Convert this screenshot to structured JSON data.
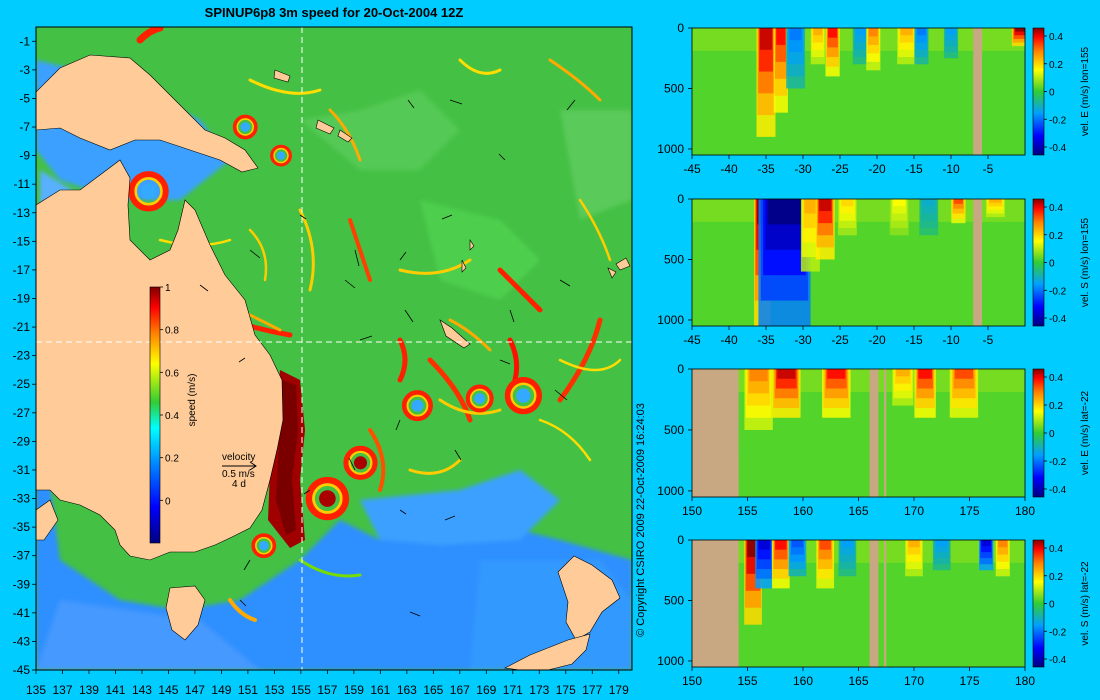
{
  "page": {
    "title": "SPINUP6p8 3m speed for 20-Oct-2004 12Z",
    "copyright": "© Copyright CSIRO 2009   22-Oct-2009 16:24:03"
  },
  "colors": {
    "background": "#00ccff",
    "land": "#ffcc99",
    "section_land": "#c8a882"
  },
  "chart_data": [
    {
      "type": "heatmap",
      "id": "map",
      "title": "SPINUP6p8 3m speed for 20-Oct-2004 12Z",
      "xticks": [
        135,
        137,
        139,
        141,
        143,
        145,
        147,
        149,
        151,
        153,
        155,
        157,
        159,
        161,
        163,
        165,
        167,
        169,
        171,
        173,
        175,
        177,
        179
      ],
      "yticks": [
        -1,
        -3,
        -5,
        -7,
        -9,
        -11,
        -13,
        -15,
        -17,
        -19,
        -21,
        -23,
        -25,
        -27,
        -29,
        -31,
        -33,
        -35,
        -37,
        -39,
        -41,
        -43,
        -45
      ],
      "xlim": [
        135,
        180
      ],
      "ylim": [
        -45,
        0
      ],
      "section_lines": {
        "lon": 155,
        "lat": -22
      },
      "colorbar": {
        "label": "speed (m/s)",
        "ticks": [
          0,
          0.2,
          0.4,
          0.6,
          0.8,
          1
        ],
        "range": [
          -0.2,
          1
        ]
      },
      "legend": {
        "label": "velocity",
        "scale": "0.5 m/s",
        "duration": "4 d"
      },
      "eddies": [
        {
          "lon": 143.5,
          "lat": -11.5,
          "r": 1.3
        },
        {
          "lon": 150.8,
          "lat": -7.0,
          "r": 0.8
        },
        {
          "lon": 153.5,
          "lat": -9.0,
          "r": 0.7
        },
        {
          "lon": 152.2,
          "lat": -36.3,
          "r": 0.8
        },
        {
          "lon": 157.0,
          "lat": -33.0,
          "r": 1.4
        },
        {
          "lon": 159.5,
          "lat": -30.5,
          "r": 1.1
        },
        {
          "lon": 171.8,
          "lat": -25.8,
          "r": 1.2
        },
        {
          "lon": 163.8,
          "lat": -26.5,
          "r": 1.0
        },
        {
          "lon": 168.5,
          "lat": -26.0,
          "r": 0.9
        }
      ]
    },
    {
      "type": "heatmap",
      "id": "s1",
      "ylabel": "vel. E (m/s) lon=155",
      "xticks": [
        -45,
        -40,
        -35,
        -30,
        -25,
        -20,
        -15,
        -10,
        -5
      ],
      "xlim": [
        -45,
        0
      ],
      "yticks": [
        0,
        500,
        1000
      ],
      "ylim": [
        0,
        1050
      ],
      "colorbar_ticks": [
        -0.4,
        -0.2,
        0,
        0.2,
        0.4
      ],
      "land_x": [
        [
          -7,
          -5.8
        ],
        [
          -6.8,
          -6.5
        ]
      ],
      "features": [
        {
          "x": -35,
          "v": 0.5,
          "w": 0.8,
          "depth": 900
        },
        {
          "x": -33,
          "v": 0.45,
          "w": 0.6,
          "depth": 700
        },
        {
          "x": -31,
          "v": -0.25,
          "w": 0.8,
          "depth": 500
        },
        {
          "x": -28,
          "v": 0.3,
          "w": 0.6,
          "depth": 300
        },
        {
          "x": -26,
          "v": 0.45,
          "w": 0.6,
          "depth": 400
        },
        {
          "x": -22,
          "v": -0.2,
          "w": 0.8,
          "depth": 300
        },
        {
          "x": -20.5,
          "v": 0.35,
          "w": 0.6,
          "depth": 350
        },
        {
          "x": -16,
          "v": 0.3,
          "w": 0.8,
          "depth": 300
        },
        {
          "x": -14,
          "v": -0.25,
          "w": 0.6,
          "depth": 300
        },
        {
          "x": -10,
          "v": -0.2,
          "w": 0.6,
          "depth": 250
        },
        {
          "x": -0.5,
          "v": 0.55,
          "w": 0.8,
          "depth": 150
        }
      ]
    },
    {
      "type": "heatmap",
      "id": "s2",
      "ylabel": "vel. S (m/s) lon=155",
      "xticks": [
        -45,
        -40,
        -35,
        -30,
        -25,
        -20,
        -15,
        -10,
        -5
      ],
      "xlim": [
        -45,
        0
      ],
      "yticks": [
        0,
        500,
        1000
      ],
      "ylim": [
        0,
        1050
      ],
      "colorbar_ticks": [
        -0.4,
        -0.2,
        0,
        0.2,
        0.4
      ],
      "land_x": [
        [
          -7,
          -5.8
        ],
        [
          -6.8,
          -6.5
        ]
      ],
      "features": [
        {
          "x": -35.5,
          "v": 0.55,
          "w": 0.7,
          "depth": 1050
        },
        {
          "x": -32.5,
          "v": -0.55,
          "w": 2.2,
          "depth": 1050
        },
        {
          "x": -29,
          "v": 0.3,
          "w": 0.8,
          "depth": 600
        },
        {
          "x": -27,
          "v": 0.5,
          "w": 0.8,
          "depth": 500
        },
        {
          "x": -24,
          "v": 0.25,
          "w": 0.8,
          "depth": 300
        },
        {
          "x": -17,
          "v": 0.2,
          "w": 0.8,
          "depth": 300
        },
        {
          "x": -13,
          "v": -0.15,
          "w": 0.8,
          "depth": 300
        },
        {
          "x": -9,
          "v": 0.4,
          "w": 0.6,
          "depth": 200
        },
        {
          "x": -4,
          "v": 0.3,
          "w": 0.8,
          "depth": 150
        }
      ]
    },
    {
      "type": "heatmap",
      "id": "s3",
      "ylabel": "vel. E (m/s) lat=-22",
      "xticks": [
        150,
        155,
        160,
        165,
        170,
        175,
        180
      ],
      "xlim": [
        150,
        180
      ],
      "yticks": [
        0,
        500,
        1000
      ],
      "ylim": [
        0,
        1050
      ],
      "colorbar_ticks": [
        -0.4,
        -0.2,
        0,
        0.2,
        0.4
      ],
      "land_x": [
        [
          150,
          154.2
        ],
        [
          166,
          166.8
        ],
        [
          167.3,
          167.5
        ]
      ],
      "features": [
        {
          "x": 156,
          "v": 0.35,
          "w": 0.8,
          "depth": 500
        },
        {
          "x": 158.5,
          "v": 0.5,
          "w": 0.8,
          "depth": 400
        },
        {
          "x": 163,
          "v": 0.45,
          "w": 0.8,
          "depth": 400
        },
        {
          "x": 169,
          "v": 0.3,
          "w": 0.6,
          "depth": 300
        },
        {
          "x": 171,
          "v": 0.45,
          "w": 0.6,
          "depth": 400
        },
        {
          "x": 174.5,
          "v": 0.4,
          "w": 0.8,
          "depth": 400
        }
      ]
    },
    {
      "type": "heatmap",
      "id": "s4",
      "ylabel": "vel. S (m/s) lat=-22",
      "xticks": [
        150,
        155,
        160,
        165,
        170,
        175,
        180
      ],
      "xlim": [
        150,
        180
      ],
      "yticks": [
        0,
        500,
        1000
      ],
      "ylim": [
        0,
        1050
      ],
      "colorbar_ticks": [
        -0.4,
        -0.2,
        0,
        0.2,
        0.4
      ],
      "land_x": [
        [
          150,
          154.2
        ],
        [
          166,
          166.8
        ],
        [
          167.3,
          167.5
        ]
      ],
      "features": [
        {
          "x": 155.5,
          "v": 0.55,
          "w": 0.5,
          "depth": 700
        },
        {
          "x": 156.5,
          "v": -0.45,
          "w": 0.5,
          "depth": 400
        },
        {
          "x": 158,
          "v": 0.45,
          "w": 0.5,
          "depth": 400
        },
        {
          "x": 159.5,
          "v": -0.3,
          "w": 0.5,
          "depth": 300
        },
        {
          "x": 162,
          "v": 0.4,
          "w": 0.5,
          "depth": 400
        },
        {
          "x": 164,
          "v": -0.2,
          "w": 0.5,
          "depth": 300
        },
        {
          "x": 170,
          "v": 0.3,
          "w": 0.5,
          "depth": 300
        },
        {
          "x": 172.5,
          "v": -0.2,
          "w": 0.5,
          "depth": 250
        },
        {
          "x": 176.5,
          "v": -0.45,
          "w": 0.4,
          "depth": 250
        },
        {
          "x": 178,
          "v": 0.35,
          "w": 0.4,
          "depth": 300
        }
      ]
    }
  ]
}
